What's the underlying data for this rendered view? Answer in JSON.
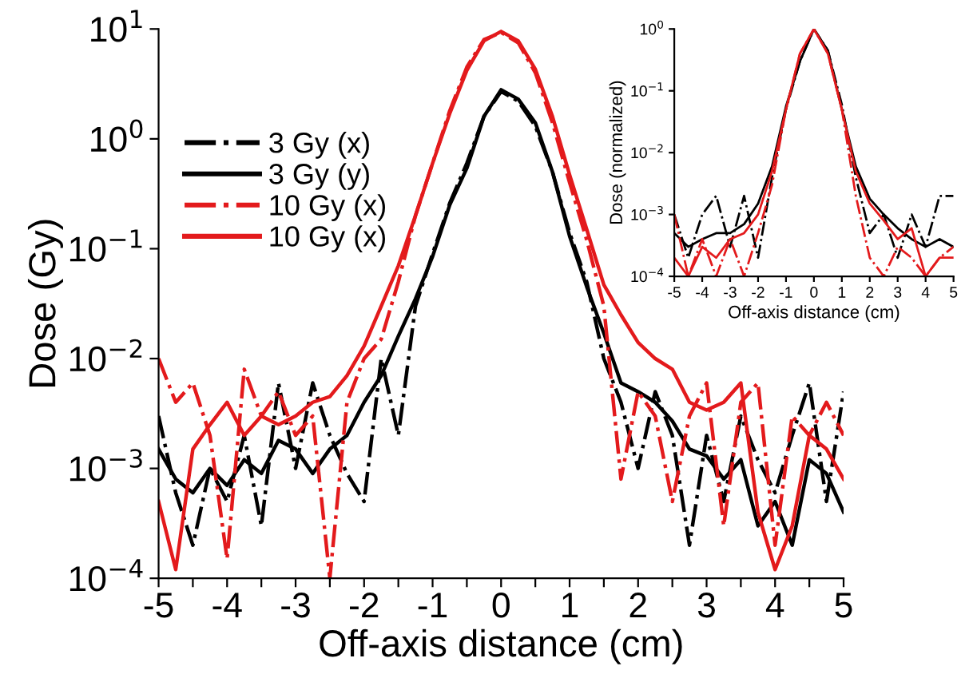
{
  "chart_data": [
    {
      "type": "line",
      "xlabel": "Off-axis distance (cm)",
      "ylabel": "Dose (Gy)",
      "log": "y",
      "legend": "top left",
      "grid": false,
      "x": [
        -5,
        -4.75,
        -4.5,
        -4.25,
        -4,
        -3.75,
        -3.5,
        -3.25,
        -3,
        -2.75,
        -2.5,
        -2.25,
        -2,
        -1.75,
        -1.5,
        -1.25,
        -1,
        -0.75,
        -0.5,
        -0.25,
        0,
        0.25,
        0.5,
        0.75,
        1,
        1.25,
        1.5,
        1.75,
        2,
        2.25,
        2.5,
        2.75,
        3,
        3.25,
        3.5,
        3.75,
        4,
        4.25,
        4.5,
        4.75,
        5
      ],
      "xlim": [
        -5,
        5
      ],
      "ylim": [
        0.0001,
        10
      ],
      "xticks": [
        -5,
        {
          "value": -4.5,
          "label": null
        },
        -4,
        {
          "value": -3.5,
          "label": null
        },
        -3,
        {
          "value": -2.5,
          "label": null
        },
        -2,
        {
          "value": -1.5,
          "label": null
        },
        -1,
        {
          "value": -0.5,
          "label": null
        },
        0,
        {
          "value": 0.5,
          "label": null
        },
        1,
        {
          "value": 1.5,
          "label": null
        },
        2,
        {
          "value": 2.5,
          "label": null
        },
        3,
        {
          "value": 3.5,
          "label": null
        },
        4,
        {
          "value": 4.5,
          "label": null
        },
        5
      ],
      "yticks": [
        {
          "value": 0.0001,
          "label": "10$^{−4}$"
        },
        {
          "value": 0.001,
          "label": "10$^{−3}$"
        },
        {
          "value": 0.01,
          "label": "10$^{−2}$"
        },
        {
          "value": 0.1,
          "label": "10$^{−1}$"
        },
        {
          "value": 1,
          "label": "10$^{0}$"
        },
        {
          "value": 10,
          "label": "10$^{1}$"
        }
      ],
      "series": [
        {
          "name": "3 Gy (x)",
          "color": "#000000",
          "line_style": "dashdot",
          "values": [
            0.003,
            0.0006,
            0.0002,
            0.001,
            0.0005,
            0.002,
            0.0003,
            0.006,
            0.001,
            0.006,
            0.002,
            0.0009,
            0.0005,
            0.01,
            0.002,
            0.03,
            0.09,
            0.26,
            0.6,
            1.6,
            2.7,
            2.2,
            1.3,
            0.5,
            0.14,
            0.05,
            0.01,
            0.004,
            0.001,
            0.005,
            0.002,
            0.0002,
            0.002,
            0.0005,
            0.003,
            0.0012,
            0.0006,
            0.002,
            0.006,
            0.0005,
            0.005
          ]
        },
        {
          "name": "3 Gy (y)",
          "color": "#000000",
          "line_style": "solid",
          "values": [
            0.0015,
            0.0008,
            0.0006,
            0.001,
            0.0007,
            0.0012,
            0.0009,
            0.0018,
            0.0015,
            0.0009,
            0.0015,
            0.002,
            0.004,
            0.007,
            0.016,
            0.035,
            0.085,
            0.25,
            0.54,
            1.6,
            2.8,
            2.3,
            1.4,
            0.5,
            0.13,
            0.045,
            0.017,
            0.006,
            0.005,
            0.004,
            0.0027,
            0.0015,
            0.0013,
            0.0008,
            0.0012,
            0.0003,
            0.0005,
            0.0002,
            0.0012,
            0.0009,
            0.0004
          ]
        },
        {
          "name": "10 Gy (x)",
          "color": "#e31a1c",
          "line_style": "dashdot",
          "values": [
            0.01,
            0.004,
            0.006,
            0.002,
            0.00015,
            0.008,
            0.003,
            0.005,
            0.002,
            0.003,
            0.0001,
            0.004,
            0.01,
            0.015,
            0.05,
            0.2,
            0.6,
            1.8,
            4.5,
            8,
            9.3,
            7.5,
            4,
            1.4,
            0.4,
            0.12,
            0.03,
            0.0008,
            0.005,
            0.003,
            0.0005,
            0.003,
            0.006,
            0.0003,
            0.004,
            0.006,
            0.0002,
            0.003,
            0.002,
            0.004,
            0.002
          ]
        },
        {
          "name": "10 Gy (x)",
          "color": "#e31a1c",
          "line_style": "solid",
          "values": [
            0.0005,
            0.00012,
            0.0015,
            0.0025,
            0.004,
            0.002,
            0.003,
            0.0025,
            0.003,
            0.004,
            0.0045,
            0.007,
            0.013,
            0.03,
            0.07,
            0.2,
            0.6,
            1.7,
            4.2,
            7.8,
            9.5,
            7.8,
            4.3,
            1.6,
            0.47,
            0.15,
            0.047,
            0.025,
            0.014,
            0.01,
            0.008,
            0.004,
            0.0034,
            0.004,
            0.006,
            0.0004,
            0.00012,
            0.0003,
            0.002,
            0.0015,
            0.0008
          ]
        }
      ]
    },
    {
      "type": "line",
      "xlabel": "Off-axis distance (cm)",
      "ylabel": "Dose (normalized)",
      "log": "y",
      "legend": false,
      "grid": false,
      "x": [
        -5,
        -4.5,
        -4,
        -3.5,
        -3,
        -2.5,
        -2,
        -1.5,
        -1,
        -0.5,
        0,
        0.5,
        1,
        1.5,
        2,
        2.5,
        3,
        3.5,
        4,
        4.5,
        5
      ],
      "xlim": [
        -5,
        5
      ],
      "ylim": [
        0.0001,
        1
      ],
      "xticks": [
        -5,
        -4,
        -3,
        -2,
        -1,
        0,
        1,
        2,
        3,
        4,
        5
      ],
      "yticks": [
        {
          "value": 0.0001,
          "label": "10$^{−4}$"
        },
        {
          "value": 0.001,
          "label": "10$^{−3}$"
        },
        {
          "value": 0.01,
          "label": "10$^{−2}$"
        },
        {
          "value": 0.1,
          "label": "10$^{−1}$"
        },
        {
          "value": 1,
          "label": "10$^{0}$"
        }
      ],
      "series": [
        {
          "color": "#000000",
          "line_style": "dashdot",
          "values": [
            0.001,
            0.0002,
            0.001,
            0.002,
            0.0003,
            0.002,
            0.0002,
            0.004,
            0.05,
            0.3,
            1,
            0.45,
            0.06,
            0.004,
            0.0005,
            0.001,
            0.0002,
            0.001,
            0.0003,
            0.002,
            0.002
          ]
        },
        {
          "color": "#000000",
          "line_style": "solid",
          "values": [
            0.0005,
            0.0003,
            0.0004,
            0.0005,
            0.0005,
            0.0007,
            0.0015,
            0.006,
            0.056,
            0.3,
            1,
            0.45,
            0.05,
            0.006,
            0.0018,
            0.001,
            0.0006,
            0.0004,
            0.0003,
            0.0004,
            0.0003
          ]
        },
        {
          "color": "#e31a1c",
          "line_style": "dashdot",
          "values": [
            0.001,
            0.0001,
            0.0004,
            0.0001,
            0.0004,
            0.0001,
            0.0005,
            0.003,
            0.05,
            0.4,
            1,
            0.4,
            0.05,
            0.002,
            0.0002,
            0.0001,
            0.0003,
            0.0002,
            0.0001,
            0.0002,
            0.0003
          ]
        },
        {
          "color": "#e31a1c",
          "line_style": "solid",
          "values": [
            0.0002,
            0.0001,
            0.0003,
            0.0002,
            0.0004,
            0.0005,
            0.001,
            0.005,
            0.05,
            0.4,
            1,
            0.4,
            0.05,
            0.005,
            0.0015,
            0.0008,
            0.0004,
            0.0006,
            0.0001,
            0.0002,
            0.0002
          ]
        }
      ]
    }
  ]
}
